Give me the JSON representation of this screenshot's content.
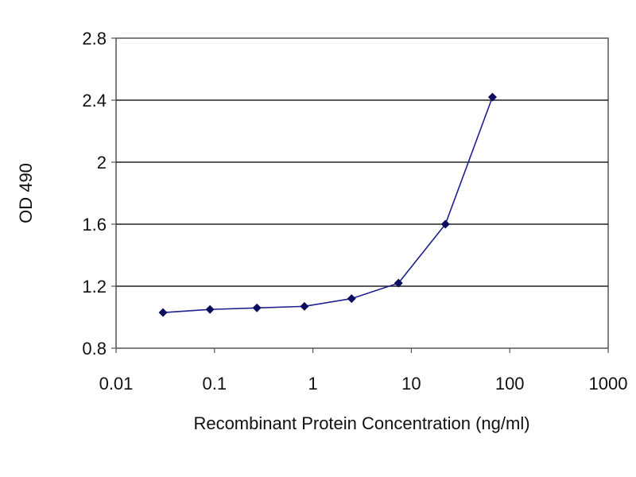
{
  "chart_data": {
    "type": "line",
    "title": "",
    "xlabel": "Recombinant Protein Concentration (ng/ml)",
    "ylabel": "OD 490",
    "x_scale": "log",
    "xlim": [
      0.01,
      1000
    ],
    "ylim": [
      0.8,
      2.8
    ],
    "x_ticks": [
      "0.01",
      "0.1",
      "1",
      "10",
      "100",
      "1000"
    ],
    "y_ticks": [
      "0.8",
      "1.2",
      "1.6",
      "2",
      "2.4",
      "2.8"
    ],
    "grid": "horizontal",
    "legend": "none",
    "series": [
      {
        "color": "#1f1f8f",
        "marker": "diamond",
        "x": [
          0.03,
          0.09,
          0.27,
          0.82,
          2.47,
          7.4,
          22.2,
          66.7
        ],
        "y": [
          1.03,
          1.05,
          1.06,
          1.07,
          1.12,
          1.22,
          1.6,
          2.42
        ]
      }
    ]
  }
}
